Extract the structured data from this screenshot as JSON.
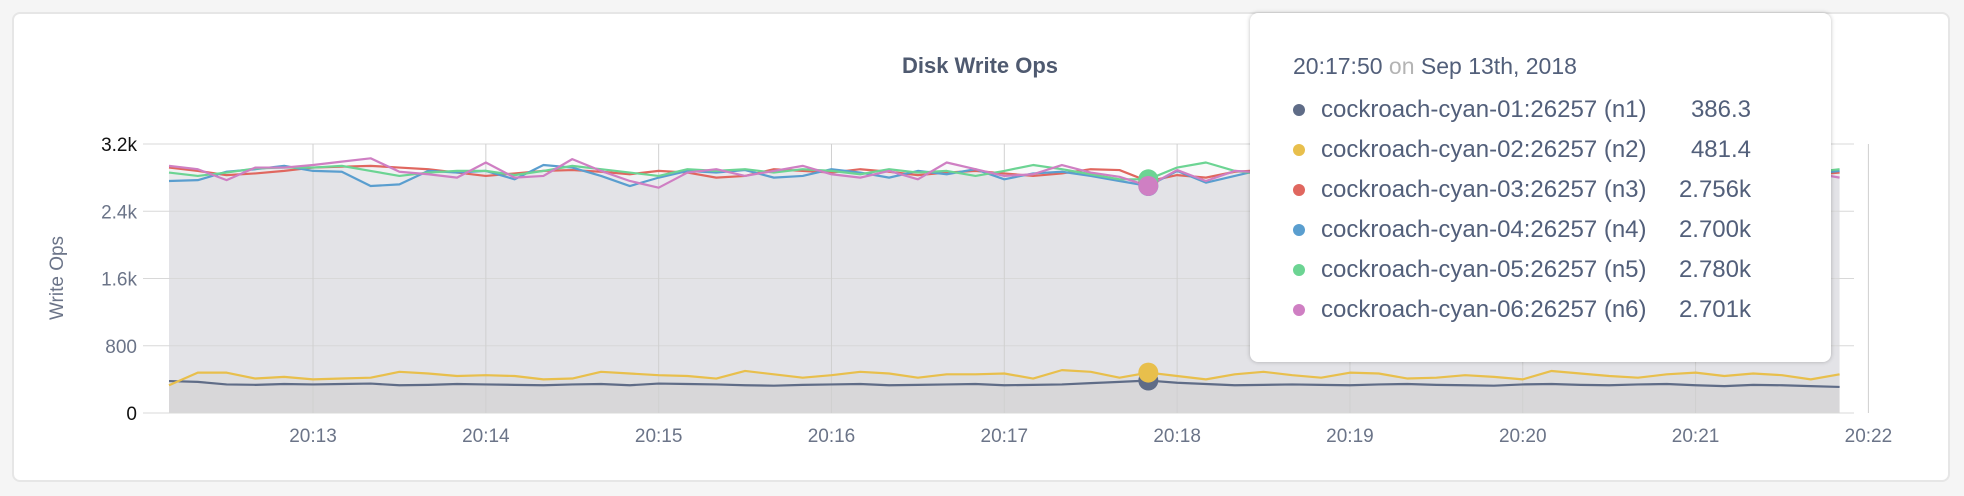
{
  "chart_data": {
    "type": "line",
    "title": "Disk Write Ops",
    "ylabel": "Write Ops",
    "xlabel": "",
    "ylim": [
      0,
      3200
    ],
    "yticks": [
      {
        "v": 0,
        "label": "0"
      },
      {
        "v": 800,
        "label": "800"
      },
      {
        "v": 1600,
        "label": "1.6k"
      },
      {
        "v": 2400,
        "label": "2.4k"
      },
      {
        "v": 3200,
        "label": "3.2k"
      }
    ],
    "xlim": [
      "20:12:10",
      "20:21:55"
    ],
    "xticks": [
      "20:13",
      "20:14",
      "20:15",
      "20:16",
      "20:17",
      "20:18",
      "20:19",
      "20:20",
      "20:21",
      "20:22"
    ],
    "grid": true,
    "area_fill": true,
    "x": [
      "20:12:10",
      "20:12:20",
      "20:12:30",
      "20:12:40",
      "20:12:50",
      "20:13:00",
      "20:13:10",
      "20:13:20",
      "20:13:30",
      "20:13:40",
      "20:13:50",
      "20:14:00",
      "20:14:10",
      "20:14:20",
      "20:14:30",
      "20:14:40",
      "20:14:50",
      "20:15:00",
      "20:15:10",
      "20:15:20",
      "20:15:30",
      "20:15:40",
      "20:15:50",
      "20:16:00",
      "20:16:10",
      "20:16:20",
      "20:16:30",
      "20:16:40",
      "20:16:50",
      "20:17:00",
      "20:17:10",
      "20:17:20",
      "20:17:30",
      "20:17:40",
      "20:17:50",
      "20:18:00",
      "20:18:10",
      "20:18:20",
      "20:18:30",
      "20:18:40",
      "20:18:50",
      "20:19:00",
      "20:19:10",
      "20:19:20",
      "20:19:30",
      "20:19:40",
      "20:19:50",
      "20:20:00",
      "20:20:10",
      "20:20:20",
      "20:20:30",
      "20:20:40",
      "20:20:50",
      "20:21:00",
      "20:21:10",
      "20:21:20",
      "20:21:30",
      "20:21:40",
      "20:21:50"
    ],
    "series": [
      {
        "name": "cockroach-cyan-01:26257 (n1)",
        "color": "#5f6c87",
        "values": [
          380,
          370,
          340,
          335,
          345,
          340,
          345,
          350,
          330,
          335,
          345,
          340,
          335,
          330,
          340,
          345,
          330,
          350,
          345,
          340,
          330,
          325,
          335,
          340,
          345,
          330,
          335,
          340,
          345,
          330,
          335,
          340,
          355,
          370,
          386,
          360,
          345,
          330,
          335,
          340,
          335,
          330,
          340,
          345,
          335,
          330,
          325,
          340,
          345,
          335,
          330,
          340,
          345,
          330,
          320,
          335,
          330,
          320,
          310
        ]
      },
      {
        "name": "cockroach-cyan-02:26257 (n2)",
        "color": "#e8bf4c",
        "values": [
          330,
          480,
          480,
          410,
          430,
          400,
          410,
          420,
          490,
          470,
          440,
          450,
          440,
          400,
          410,
          490,
          470,
          450,
          440,
          410,
          500,
          460,
          420,
          450,
          490,
          470,
          420,
          460,
          460,
          470,
          410,
          510,
          490,
          420,
          481,
          440,
          400,
          460,
          490,
          450,
          420,
          480,
          470,
          410,
          420,
          450,
          430,
          400,
          500,
          470,
          440,
          420,
          460,
          480,
          440,
          470,
          450,
          400,
          460
        ]
      },
      {
        "name": "cockroach-cyan-03:26257 (n3)",
        "color": "#e0675f",
        "values": [
          2920,
          2880,
          2830,
          2850,
          2880,
          2920,
          2930,
          2940,
          2920,
          2900,
          2860,
          2820,
          2850,
          2880,
          2890,
          2870,
          2840,
          2880,
          2860,
          2800,
          2820,
          2900,
          2880,
          2860,
          2900,
          2870,
          2830,
          2860,
          2880,
          2850,
          2820,
          2850,
          2900,
          2890,
          2756,
          2830,
          2800,
          2870,
          2890,
          2850,
          2830,
          2870,
          2900,
          2860,
          2820,
          2850,
          2880,
          2890,
          2870,
          2830,
          2860,
          2880,
          2850,
          2870,
          2900,
          2880,
          2850,
          2830,
          2860
        ]
      },
      {
        "name": "cockroach-cyan-04:26257 (n4)",
        "color": "#5a9ecf",
        "values": [
          2760,
          2770,
          2870,
          2900,
          2940,
          2880,
          2870,
          2700,
          2720,
          2880,
          2860,
          2880,
          2780,
          2950,
          2920,
          2820,
          2700,
          2800,
          2880,
          2860,
          2890,
          2800,
          2820,
          2900,
          2860,
          2800,
          2880,
          2840,
          2900,
          2780,
          2850,
          2870,
          2820,
          2760,
          2700,
          2880,
          2740,
          2820,
          2900,
          2860,
          2800,
          2780,
          2870,
          2840,
          2900,
          2820,
          2760,
          2860,
          2880,
          2820,
          2790,
          2850,
          2880,
          2900,
          2860,
          2820,
          2870,
          2840,
          2880
        ]
      },
      {
        "name": "cockroach-cyan-05:26257 (n5)",
        "color": "#6cd493",
        "values": [
          2860,
          2820,
          2860,
          2910,
          2920,
          2920,
          2940,
          2880,
          2820,
          2860,
          2880,
          2880,
          2830,
          2880,
          2940,
          2900,
          2860,
          2820,
          2900,
          2880,
          2900,
          2860,
          2900,
          2880,
          2840,
          2900,
          2860,
          2880,
          2820,
          2880,
          2950,
          2900,
          2840,
          2780,
          2780,
          2920,
          2980,
          2880,
          2840,
          2900,
          2860,
          2880,
          2920,
          2840,
          2880,
          2900,
          2860,
          2820,
          2880,
          2900,
          2860,
          2840,
          2880,
          2910,
          2870,
          2850,
          2880,
          2860,
          2900
        ]
      },
      {
        "name": "cockroach-cyan-06:26257 (n6)",
        "color": "#cf7fc3",
        "values": [
          2940,
          2900,
          2770,
          2920,
          2920,
          2950,
          2990,
          3030,
          2870,
          2840,
          2800,
          2980,
          2800,
          2820,
          3020,
          2880,
          2760,
          2680,
          2860,
          2900,
          2820,
          2880,
          2940,
          2840,
          2800,
          2880,
          2780,
          2980,
          2900,
          2820,
          2840,
          2950,
          2860,
          2810,
          2701,
          2890,
          2760,
          2880,
          2860,
          2820,
          2900,
          2860,
          2800,
          2880,
          2840,
          2900,
          2870,
          2820,
          2860,
          2900,
          2840,
          2800,
          2860,
          2880,
          2850,
          2880,
          2830,
          2860,
          2800
        ]
      }
    ]
  },
  "tooltip": {
    "time": "20:17:50",
    "on": "on",
    "date": "Sep 13th, 2018",
    "rows": [
      {
        "name": "cockroach-cyan-01:26257 (n1)",
        "value": "386.3",
        "color": "#5f6c87"
      },
      {
        "name": "cockroach-cyan-02:26257 (n2)",
        "value": "481.4",
        "color": "#e8bf4c"
      },
      {
        "name": "cockroach-cyan-03:26257 (n3)",
        "value": "2.756k",
        "color": "#e0675f"
      },
      {
        "name": "cockroach-cyan-04:26257 (n4)",
        "value": "2.700k",
        "color": "#5a9ecf"
      },
      {
        "name": "cockroach-cyan-05:26257 (n5)",
        "value": "2.780k",
        "color": "#6cd493"
      },
      {
        "name": "cockroach-cyan-06:26257 (n6)",
        "value": "2.701k",
        "color": "#cf7fc3"
      }
    ]
  }
}
